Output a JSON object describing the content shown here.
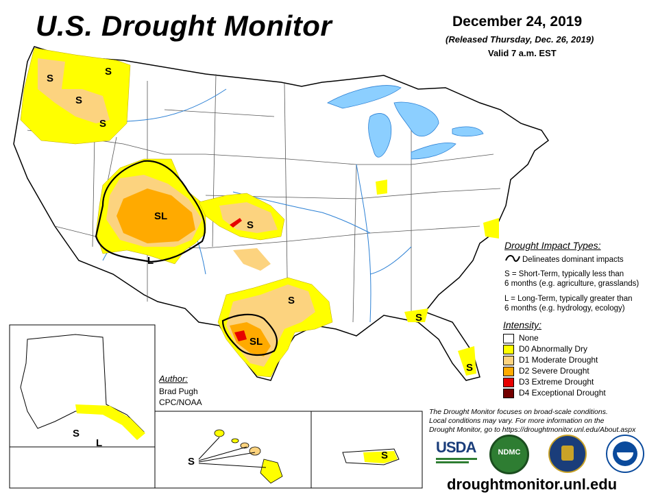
{
  "title": "U.S. Drought Monitor",
  "date": "December 24, 2019",
  "released": "(Released Thursday, Dec. 26, 2019)",
  "valid": "Valid 7 a.m. EST",
  "impact_types": {
    "heading": "Drought Impact Types:",
    "delineates": "Delineates dominant impacts",
    "s_line1": "S = Short-Term, typically less than",
    "s_line2": "6 months (e.g. agriculture, grasslands)",
    "l_line1": "L = Long-Term, typically greater than",
    "l_line2": "6 months (e.g. hydrology, ecology)"
  },
  "intensity": {
    "heading": "Intensity:",
    "levels": [
      {
        "label": "None",
        "color": "#ffffff"
      },
      {
        "label": "D0 Abnormally Dry",
        "color": "#ffff00"
      },
      {
        "label": "D1 Moderate Drought",
        "color": "#fcd37f"
      },
      {
        "label": "D2 Severe Drought",
        "color": "#ffaa00"
      },
      {
        "label": "D3 Extreme Drought",
        "color": "#e60000"
      },
      {
        "label": "D4 Exceptional Drought",
        "color": "#730000"
      }
    ]
  },
  "author": {
    "heading": "Author:",
    "name": "Brad Pugh",
    "org": "CPC/NOAA"
  },
  "note": {
    "line1": "The Drought Monitor focuses on broad-scale conditions.",
    "line2": "Local conditions may vary. For more information on the",
    "line3": "Drought Monitor, go to https://droughtmonitor.unl.edu/About.aspx"
  },
  "logos": {
    "usda": "USDA",
    "ndmc": "NDMC"
  },
  "url": "droughtmonitor.unl.edu",
  "map_labels": {
    "wa_s": "S",
    "id_s": "S",
    "or_s1": "S",
    "or_s2": "S",
    "co_sl": "SL",
    "az_l": "L",
    "ks_s": "S",
    "tx_s": "S",
    "tx_sl": "SL",
    "fl_s1": "S",
    "fl_s2": "S",
    "ak_s": "S",
    "ak_l": "L",
    "hi_s": "S",
    "pr_s": "S"
  },
  "colors": {
    "water": "#8ccfff",
    "d0": "#ffff00",
    "d1": "#fcd37f",
    "d2": "#ffaa00",
    "d3": "#e60000"
  }
}
